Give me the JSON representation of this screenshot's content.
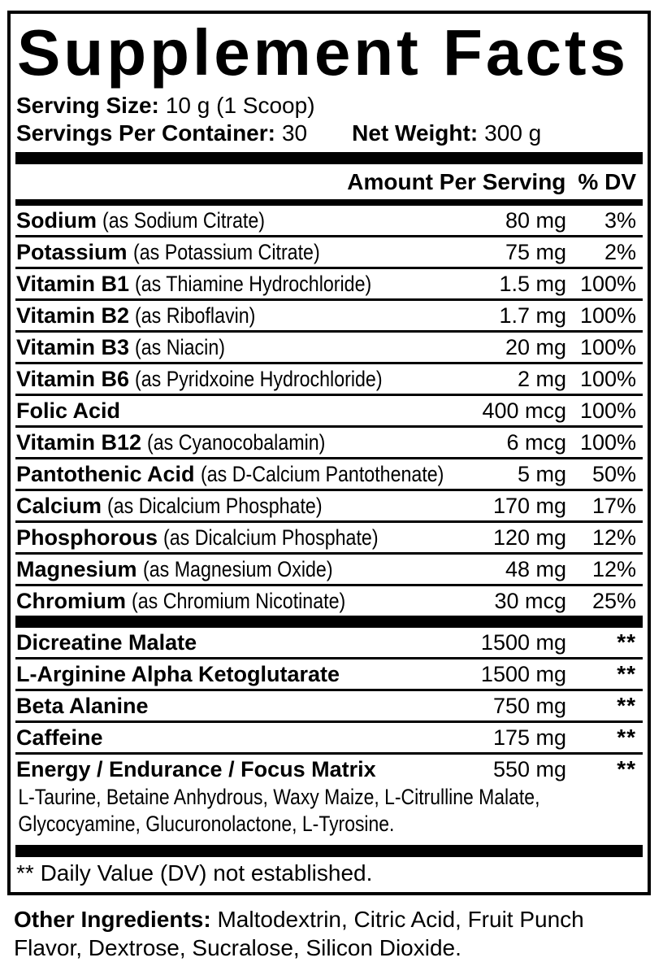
{
  "title": "Supplement Facts",
  "serving": {
    "serving_size": {
      "label": "Serving Size:",
      "value": "10 g (1 Scoop)"
    },
    "servings_per_container": {
      "label": "Servings Per Container:",
      "value": "30"
    },
    "net_weight": {
      "label": "Net Weight:",
      "value": "300 g"
    }
  },
  "table": {
    "columns": {
      "amount": "Amount Per Serving",
      "dv": "% DV"
    },
    "nutrients": [
      {
        "name": "Sodium",
        "detail": "(as Sodium Citrate)",
        "amount": "80 mg",
        "dv": "3%"
      },
      {
        "name": "Potassium",
        "detail": "(as Potassium Citrate)",
        "amount": "75 mg",
        "dv": "2%"
      },
      {
        "name": "Vitamin B1",
        "detail": "(as Thiamine Hydrochloride)",
        "amount": "1.5 mg",
        "dv": "100%"
      },
      {
        "name": "Vitamin B2",
        "detail": "(as Riboflavin)",
        "amount": "1.7 mg",
        "dv": "100%"
      },
      {
        "name": "Vitamin B3",
        "detail": "(as Niacin)",
        "amount": "20 mg",
        "dv": "100%"
      },
      {
        "name": "Vitamin B6",
        "detail": "(as Pyridxoine Hydrochloride)",
        "amount": "2 mg",
        "dv": "100%"
      },
      {
        "name": "Folic Acid",
        "detail": "",
        "amount": "400 mcg",
        "dv": "100%"
      },
      {
        "name": "Vitamin B12",
        "detail": "(as Cyanocobalamin)",
        "amount": "6 mcg",
        "dv": "100%"
      },
      {
        "name": "Pantothenic Acid",
        "detail": "(as D-Calcium Pantothenate)",
        "amount": "5 mg",
        "dv": "50%"
      },
      {
        "name": "Calcium",
        "detail": "(as Dicalcium Phosphate)",
        "amount": "170 mg",
        "dv": "17%"
      },
      {
        "name": "Phosphorous",
        "detail": "(as Dicalcium Phosphate)",
        "amount": "120 mg",
        "dv": "12%"
      },
      {
        "name": "Magnesium",
        "detail": "(as Magnesium Oxide)",
        "amount": "48 mg",
        "dv": "12%"
      },
      {
        "name": "Chromium",
        "detail": "(as Chromium Nicotinate)",
        "amount": "30 mcg",
        "dv": "25%"
      }
    ],
    "blend": [
      {
        "name": "Dicreatine Malate",
        "amount": "1500 mg",
        "dv": "**"
      },
      {
        "name": "L-Arginine Alpha Ketoglutarate",
        "amount": "1500 mg",
        "dv": "**"
      },
      {
        "name": "Beta Alanine",
        "amount": "750 mg",
        "dv": "**"
      },
      {
        "name": "Caffeine",
        "amount": "175 mg",
        "dv": "**"
      },
      {
        "name": "Energy / Endurance / Focus Matrix",
        "amount": "550 mg",
        "dv": "**",
        "components_lines": [
          "L-Taurine, Betaine Anhydrous, Waxy Maize, L-Citrulline Malate,",
          "Glycocyamine, Glucuronolactone, L-Tyrosine."
        ]
      }
    ],
    "footnote": "** Daily Value (DV) not established."
  },
  "other_ingredients": {
    "label": "Other Ingredients:",
    "value": "Maltodextrin, Citric Acid, Fruit Punch Flavor, Dextrose, Sucralose, Silicon Dioxide."
  },
  "colors": {
    "text": "#000000",
    "background": "#ffffff",
    "rule": "#000000"
  }
}
